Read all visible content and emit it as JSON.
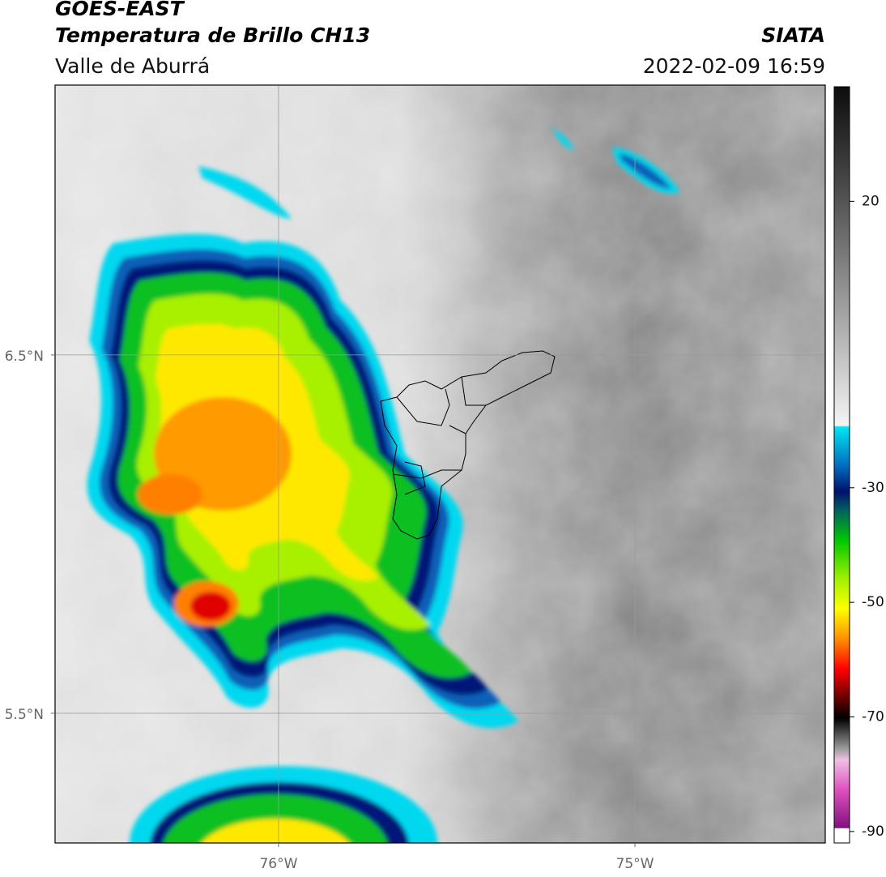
{
  "header": {
    "title": "GOES-EAST",
    "subtitle": "Temperatura de Brillo CH13",
    "region": "Valle de Aburrá",
    "source": "SIATA",
    "datetime": "2022-02-09 16:59"
  },
  "map": {
    "xlim": [
      -76.627,
      -74.466
    ],
    "ylim": [
      5.138,
      7.253
    ],
    "xticks": [
      {
        "value": -76,
        "label": "76°W"
      },
      {
        "value": -75,
        "label": "75°W"
      }
    ],
    "yticks": [
      {
        "value": 5.5,
        "label": "5.5°N"
      },
      {
        "value": 6.5,
        "label": "6.5°N"
      }
    ],
    "grid": true
  },
  "colorbar": {
    "clim": [
      -92,
      40
    ],
    "ticks": [
      20,
      -30,
      -50,
      -70,
      -90
    ]
  }
}
